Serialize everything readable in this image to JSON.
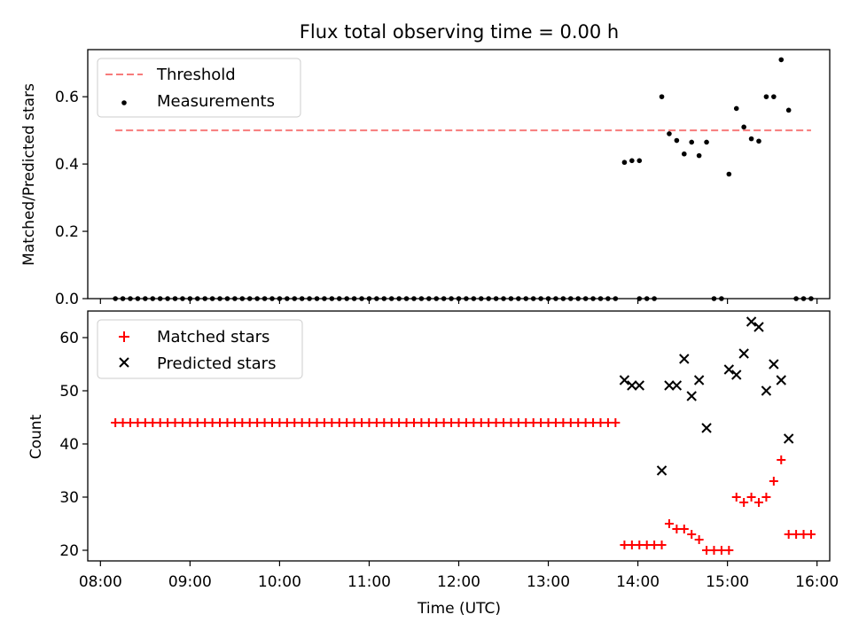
{
  "chart_data": {
    "title": "Flux total observing time = 0.00 h",
    "xlabel": "Time (UTC)",
    "xlim": [
      "08:00",
      "16:00"
    ],
    "x_ticks": [
      "08:00",
      "09:00",
      "10:00",
      "11:00",
      "12:00",
      "13:00",
      "14:00",
      "15:00",
      "16:00"
    ],
    "charts": [
      {
        "type": "scatter",
        "ylabel": "Matched/Predicted stars",
        "ylim": [
          0,
          0.74
        ],
        "y_ticks": [
          "0.0",
          "0.2",
          "0.4",
          "0.6"
        ],
        "y_tick_values": [
          0,
          0.2,
          0.4,
          0.6
        ],
        "legend_position": "top-left",
        "threshold": {
          "name": "Threshold",
          "value": 0.5,
          "x_range": [
            "08:10",
            "15:56"
          ],
          "color": "#f77b7b",
          "style": "dashed"
        },
        "series": [
          {
            "name": "Measurements",
            "marker": "dot",
            "color": "#000000",
            "points": [
              [
                "08:10",
                0
              ],
              [
                "08:15",
                0
              ],
              [
                "08:20",
                0
              ],
              [
                "08:25",
                0
              ],
              [
                "08:30",
                0
              ],
              [
                "08:35",
                0
              ],
              [
                "08:40",
                0
              ],
              [
                "08:45",
                0
              ],
              [
                "08:50",
                0
              ],
              [
                "08:55",
                0
              ],
              [
                "09:00",
                0
              ],
              [
                "09:05",
                0
              ],
              [
                "09:10",
                0
              ],
              [
                "09:15",
                0
              ],
              [
                "09:20",
                0
              ],
              [
                "09:25",
                0
              ],
              [
                "09:30",
                0
              ],
              [
                "09:35",
                0
              ],
              [
                "09:40",
                0
              ],
              [
                "09:45",
                0
              ],
              [
                "09:50",
                0
              ],
              [
                "09:55",
                0
              ],
              [
                "10:00",
                0
              ],
              [
                "10:05",
                0
              ],
              [
                "10:10",
                0
              ],
              [
                "10:15",
                0
              ],
              [
                "10:20",
                0
              ],
              [
                "10:25",
                0
              ],
              [
                "10:30",
                0
              ],
              [
                "10:35",
                0
              ],
              [
                "10:40",
                0
              ],
              [
                "10:45",
                0
              ],
              [
                "10:50",
                0
              ],
              [
                "10:55",
                0
              ],
              [
                "11:00",
                0
              ],
              [
                "11:05",
                0
              ],
              [
                "11:10",
                0
              ],
              [
                "11:15",
                0
              ],
              [
                "11:20",
                0
              ],
              [
                "11:25",
                0
              ],
              [
                "11:30",
                0
              ],
              [
                "11:35",
                0
              ],
              [
                "11:40",
                0
              ],
              [
                "11:45",
                0
              ],
              [
                "11:50",
                0
              ],
              [
                "11:55",
                0
              ],
              [
                "12:00",
                0
              ],
              [
                "12:05",
                0
              ],
              [
                "12:10",
                0
              ],
              [
                "12:15",
                0
              ],
              [
                "12:20",
                0
              ],
              [
                "12:25",
                0
              ],
              [
                "12:30",
                0
              ],
              [
                "12:35",
                0
              ],
              [
                "12:40",
                0
              ],
              [
                "12:45",
                0
              ],
              [
                "12:50",
                0
              ],
              [
                "12:55",
                0
              ],
              [
                "13:00",
                0
              ],
              [
                "13:05",
                0
              ],
              [
                "13:10",
                0
              ],
              [
                "13:15",
                0
              ],
              [
                "13:20",
                0
              ],
              [
                "13:25",
                0
              ],
              [
                "13:30",
                0
              ],
              [
                "13:35",
                0
              ],
              [
                "13:40",
                0
              ],
              [
                "13:45",
                0
              ],
              [
                "13:51",
                0.405
              ],
              [
                "13:56",
                0.41
              ],
              [
                "14:01",
                0.41
              ],
              [
                "14:01",
                0
              ],
              [
                "14:06",
                0
              ],
              [
                "14:11",
                0
              ],
              [
                "14:16",
                0.6
              ],
              [
                "14:21",
                0.49
              ],
              [
                "14:26",
                0.47
              ],
              [
                "14:31",
                0.43
              ],
              [
                "14:36",
                0.465
              ],
              [
                "14:41",
                0.425
              ],
              [
                "14:46",
                0.465
              ],
              [
                "14:51",
                0
              ],
              [
                "14:56",
                0
              ],
              [
                "15:01",
                0.37
              ],
              [
                "15:06",
                0.565
              ],
              [
                "15:11",
                0.51
              ],
              [
                "15:16",
                0.475
              ],
              [
                "15:21",
                0.468
              ],
              [
                "15:26",
                0.6
              ],
              [
                "15:31",
                0.6
              ],
              [
                "15:36",
                0.71
              ],
              [
                "15:41",
                0.56
              ],
              [
                "15:46",
                0
              ],
              [
                "15:51",
                0
              ],
              [
                "15:56",
                0
              ]
            ]
          }
        ]
      },
      {
        "type": "scatter",
        "ylabel": "Count",
        "ylim": [
          18,
          65
        ],
        "y_ticks": [
          "20",
          "30",
          "40",
          "50",
          "60"
        ],
        "y_tick_values": [
          20,
          30,
          40,
          50,
          60
        ],
        "legend_position": "top-left",
        "series": [
          {
            "name": "Matched stars",
            "marker": "plus",
            "color": "#ff0000",
            "points": [
              [
                "08:10",
                44
              ],
              [
                "08:15",
                44
              ],
              [
                "08:20",
                44
              ],
              [
                "08:25",
                44
              ],
              [
                "08:30",
                44
              ],
              [
                "08:35",
                44
              ],
              [
                "08:40",
                44
              ],
              [
                "08:45",
                44
              ],
              [
                "08:50",
                44
              ],
              [
                "08:55",
                44
              ],
              [
                "09:00",
                44
              ],
              [
                "09:05",
                44
              ],
              [
                "09:10",
                44
              ],
              [
                "09:15",
                44
              ],
              [
                "09:20",
                44
              ],
              [
                "09:25",
                44
              ],
              [
                "09:30",
                44
              ],
              [
                "09:35",
                44
              ],
              [
                "09:40",
                44
              ],
              [
                "09:45",
                44
              ],
              [
                "09:50",
                44
              ],
              [
                "09:55",
                44
              ],
              [
                "10:00",
                44
              ],
              [
                "10:05",
                44
              ],
              [
                "10:10",
                44
              ],
              [
                "10:15",
                44
              ],
              [
                "10:20",
                44
              ],
              [
                "10:25",
                44
              ],
              [
                "10:30",
                44
              ],
              [
                "10:35",
                44
              ],
              [
                "10:40",
                44
              ],
              [
                "10:45",
                44
              ],
              [
                "10:50",
                44
              ],
              [
                "10:55",
                44
              ],
              [
                "11:00",
                44
              ],
              [
                "11:05",
                44
              ],
              [
                "11:10",
                44
              ],
              [
                "11:15",
                44
              ],
              [
                "11:20",
                44
              ],
              [
                "11:25",
                44
              ],
              [
                "11:30",
                44
              ],
              [
                "11:35",
                44
              ],
              [
                "11:40",
                44
              ],
              [
                "11:45",
                44
              ],
              [
                "11:50",
                44
              ],
              [
                "11:55",
                44
              ],
              [
                "12:00",
                44
              ],
              [
                "12:05",
                44
              ],
              [
                "12:10",
                44
              ],
              [
                "12:15",
                44
              ],
              [
                "12:20",
                44
              ],
              [
                "12:25",
                44
              ],
              [
                "12:30",
                44
              ],
              [
                "12:35",
                44
              ],
              [
                "12:40",
                44
              ],
              [
                "12:45",
                44
              ],
              [
                "12:50",
                44
              ],
              [
                "12:55",
                44
              ],
              [
                "13:00",
                44
              ],
              [
                "13:05",
                44
              ],
              [
                "13:10",
                44
              ],
              [
                "13:15",
                44
              ],
              [
                "13:20",
                44
              ],
              [
                "13:25",
                44
              ],
              [
                "13:30",
                44
              ],
              [
                "13:35",
                44
              ],
              [
                "13:40",
                44
              ],
              [
                "13:45",
                44
              ],
              [
                "13:51",
                21
              ],
              [
                "13:56",
                21
              ],
              [
                "14:01",
                21
              ],
              [
                "14:06",
                21
              ],
              [
                "14:11",
                21
              ],
              [
                "14:16",
                21
              ],
              [
                "14:21",
                25
              ],
              [
                "14:26",
                24
              ],
              [
                "14:31",
                24
              ],
              [
                "14:36",
                23
              ],
              [
                "14:41",
                22
              ],
              [
                "14:46",
                20
              ],
              [
                "14:51",
                20
              ],
              [
                "14:56",
                20
              ],
              [
                "15:01",
                20
              ],
              [
                "15:06",
                30
              ],
              [
                "15:11",
                29
              ],
              [
                "15:16",
                30
              ],
              [
                "15:21",
                29
              ],
              [
                "15:26",
                30
              ],
              [
                "15:31",
                33
              ],
              [
                "15:36",
                37
              ],
              [
                "15:41",
                23
              ],
              [
                "15:46",
                23
              ],
              [
                "15:51",
                23
              ],
              [
                "15:56",
                23
              ]
            ]
          },
          {
            "name": "Predicted stars",
            "marker": "x",
            "color": "#000000",
            "points": [
              [
                "13:51",
                52
              ],
              [
                "13:56",
                51
              ],
              [
                "14:01",
                51
              ],
              [
                "14:16",
                35
              ],
              [
                "14:21",
                51
              ],
              [
                "14:26",
                51
              ],
              [
                "14:31",
                56
              ],
              [
                "14:36",
                49
              ],
              [
                "14:41",
                52
              ],
              [
                "14:46",
                43
              ],
              [
                "15:01",
                54
              ],
              [
                "15:06",
                53
              ],
              [
                "15:11",
                57
              ],
              [
                "15:16",
                63
              ],
              [
                "15:21",
                62
              ],
              [
                "15:26",
                50
              ],
              [
                "15:31",
                55
              ],
              [
                "15:36",
                52
              ],
              [
                "15:41",
                41
              ]
            ]
          }
        ]
      }
    ]
  }
}
